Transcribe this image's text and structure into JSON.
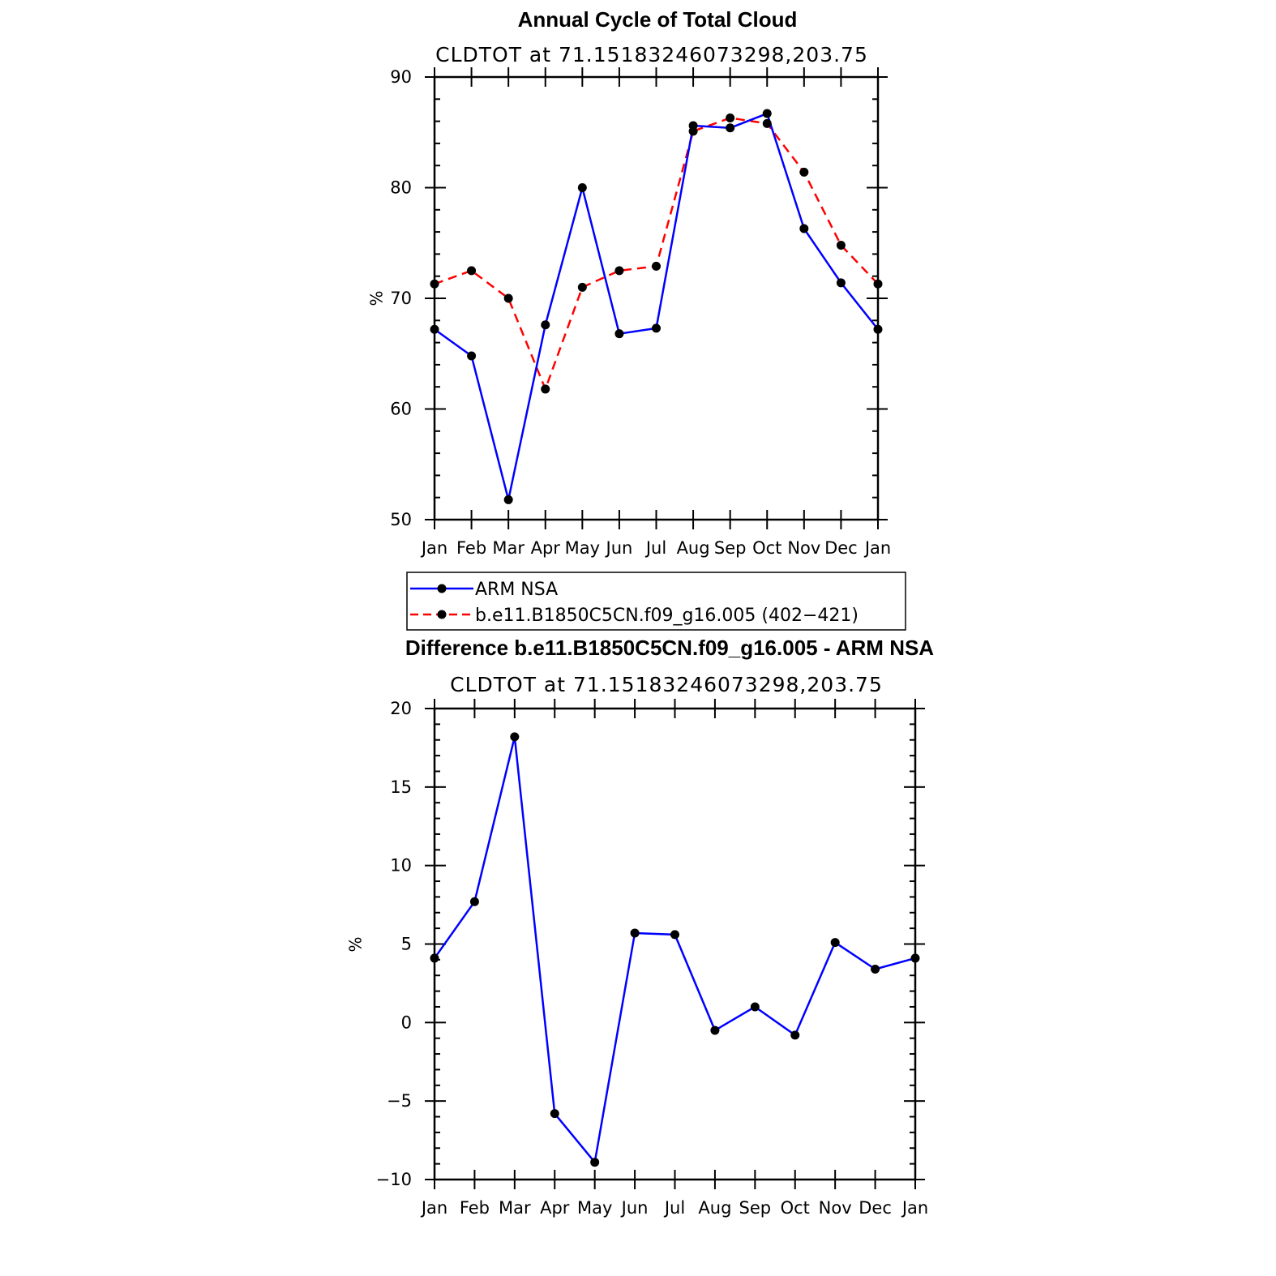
{
  "chart_data": [
    {
      "type": "line",
      "title": "Annual Cycle of Total Cloud",
      "subtitle": "CLDTOT at 71.15183246073298,203.75",
      "xlabel": "",
      "ylabel": "%",
      "categories": [
        "Jan",
        "Feb",
        "Mar",
        "Apr",
        "May",
        "Jun",
        "Jul",
        "Aug",
        "Sep",
        "Oct",
        "Nov",
        "Dec",
        "Jan"
      ],
      "ylim": [
        50,
        90
      ],
      "yticks": [
        "50",
        "60",
        "70",
        "80",
        "90"
      ],
      "yticks_values": [
        50,
        60,
        70,
        80,
        90
      ],
      "series": [
        {
          "name": "ARM NSA",
          "color": "#0000ff",
          "dash": "solid",
          "values": [
            67.2,
            64.8,
            51.8,
            67.6,
            80.0,
            66.8,
            67.3,
            85.6,
            85.4,
            86.7,
            76.3,
            71.4,
            67.2
          ]
        },
        {
          "name": "b.e11.B1850C5CN.f09_g16.005 (402−421)",
          "color": "#ff0000",
          "dash": "dashed",
          "values": [
            71.3,
            72.5,
            70.0,
            61.8,
            71.0,
            72.5,
            72.9,
            85.1,
            86.3,
            85.8,
            81.4,
            74.8,
            71.3
          ]
        }
      ],
      "legend": "below"
    },
    {
      "type": "line",
      "title": "Difference b.e11.B1850C5CN.f09_g16.005 - ARM NSA",
      "subtitle": "CLDTOT at 71.15183246073298,203.75",
      "xlabel": "",
      "ylabel": "%",
      "categories": [
        "Jan",
        "Feb",
        "Mar",
        "Apr",
        "May",
        "Jun",
        "Jul",
        "Aug",
        "Sep",
        "Oct",
        "Nov",
        "Dec",
        "Jan"
      ],
      "ylim": [
        -10,
        20
      ],
      "yticks": [
        "−10",
        "−5",
        "0",
        "5",
        "10",
        "15",
        "20"
      ],
      "yticks_values": [
        -10,
        -5,
        0,
        5,
        10,
        15,
        20
      ],
      "series": [
        {
          "color": "#0000ff",
          "dash": "solid",
          "values": [
            4.1,
            7.7,
            18.2,
            -5.8,
            -8.9,
            5.7,
            5.6,
            -0.5,
            1.0,
            -0.8,
            5.1,
            3.4,
            4.1
          ]
        }
      ]
    }
  ],
  "colors": {
    "marker": "#000000",
    "axis": "#000000"
  }
}
